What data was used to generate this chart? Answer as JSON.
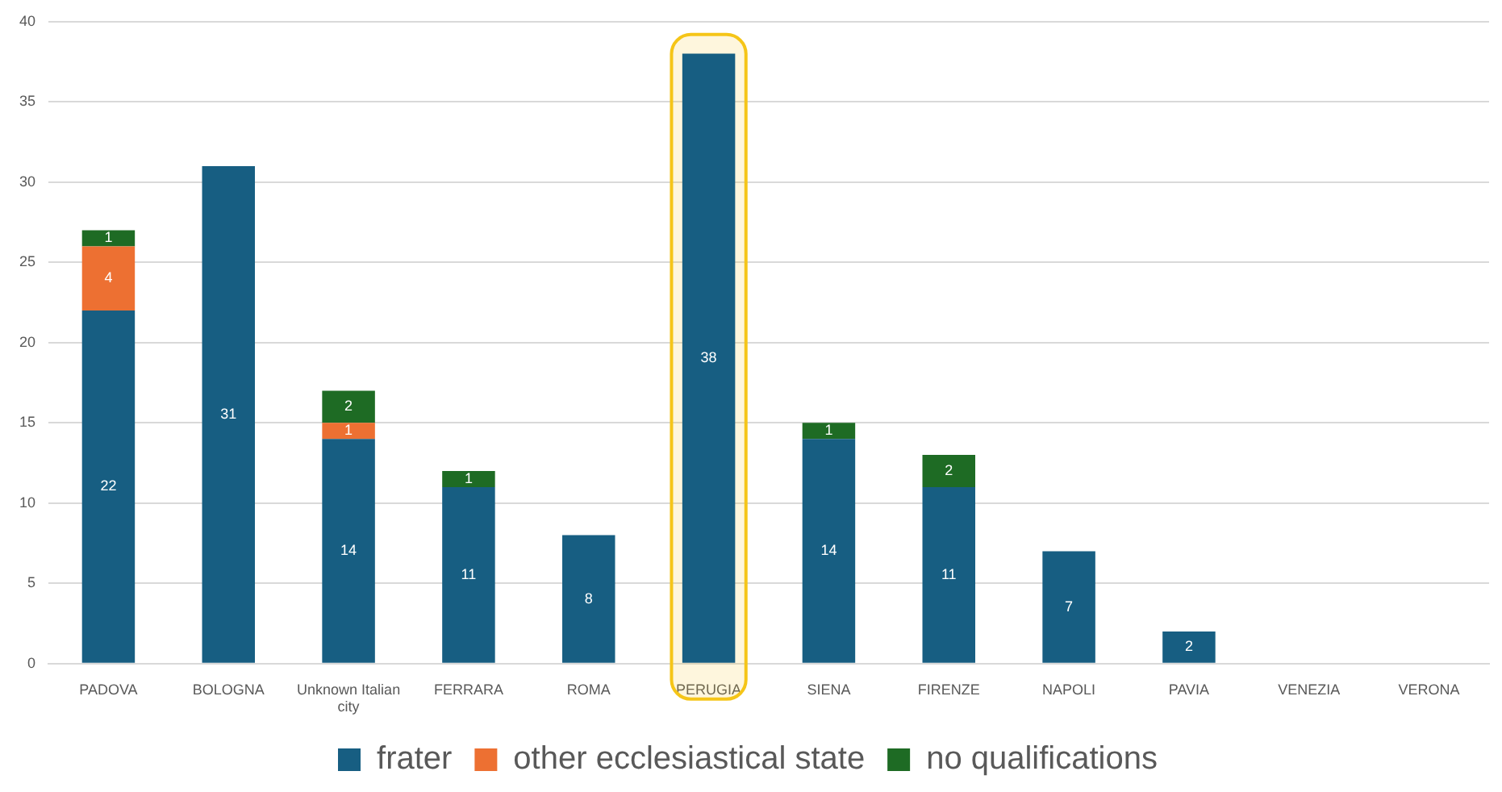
{
  "chart_data": {
    "type": "bar",
    "stacked": true,
    "categories": [
      "PADOVA",
      "BOLOGNA",
      "Unknown Italian city",
      "FERRARA",
      "ROMA",
      "PERUGIA",
      "SIENA",
      "FIRENZE",
      "NAPOLI",
      "PAVIA",
      "VENEZIA",
      "VERONA"
    ],
    "series": [
      {
        "name": "frater",
        "color": "#175e82",
        "values": [
          22,
          31,
          14,
          11,
          8,
          38,
          14,
          11,
          7,
          2,
          null,
          null
        ]
      },
      {
        "name": "other ecclesiastical state",
        "color": "#ed7032",
        "values": [
          4,
          null,
          1,
          null,
          null,
          null,
          null,
          null,
          null,
          null,
          null,
          null
        ]
      },
      {
        "name": "no qualifications",
        "color": "#1e6b24",
        "values": [
          1,
          null,
          2,
          1,
          null,
          null,
          1,
          2,
          null,
          null,
          null,
          null
        ]
      }
    ],
    "ylim": [
      0,
      40
    ],
    "yticks": [
      0,
      5,
      10,
      15,
      20,
      25,
      30,
      35,
      40
    ],
    "grid": "y",
    "legend": "bottom",
    "data_labels": true,
    "bands": [
      {
        "axis": "x",
        "from": "PERUGIA",
        "to": "PERUGIA",
        "color": "#f5c518"
      }
    ]
  }
}
